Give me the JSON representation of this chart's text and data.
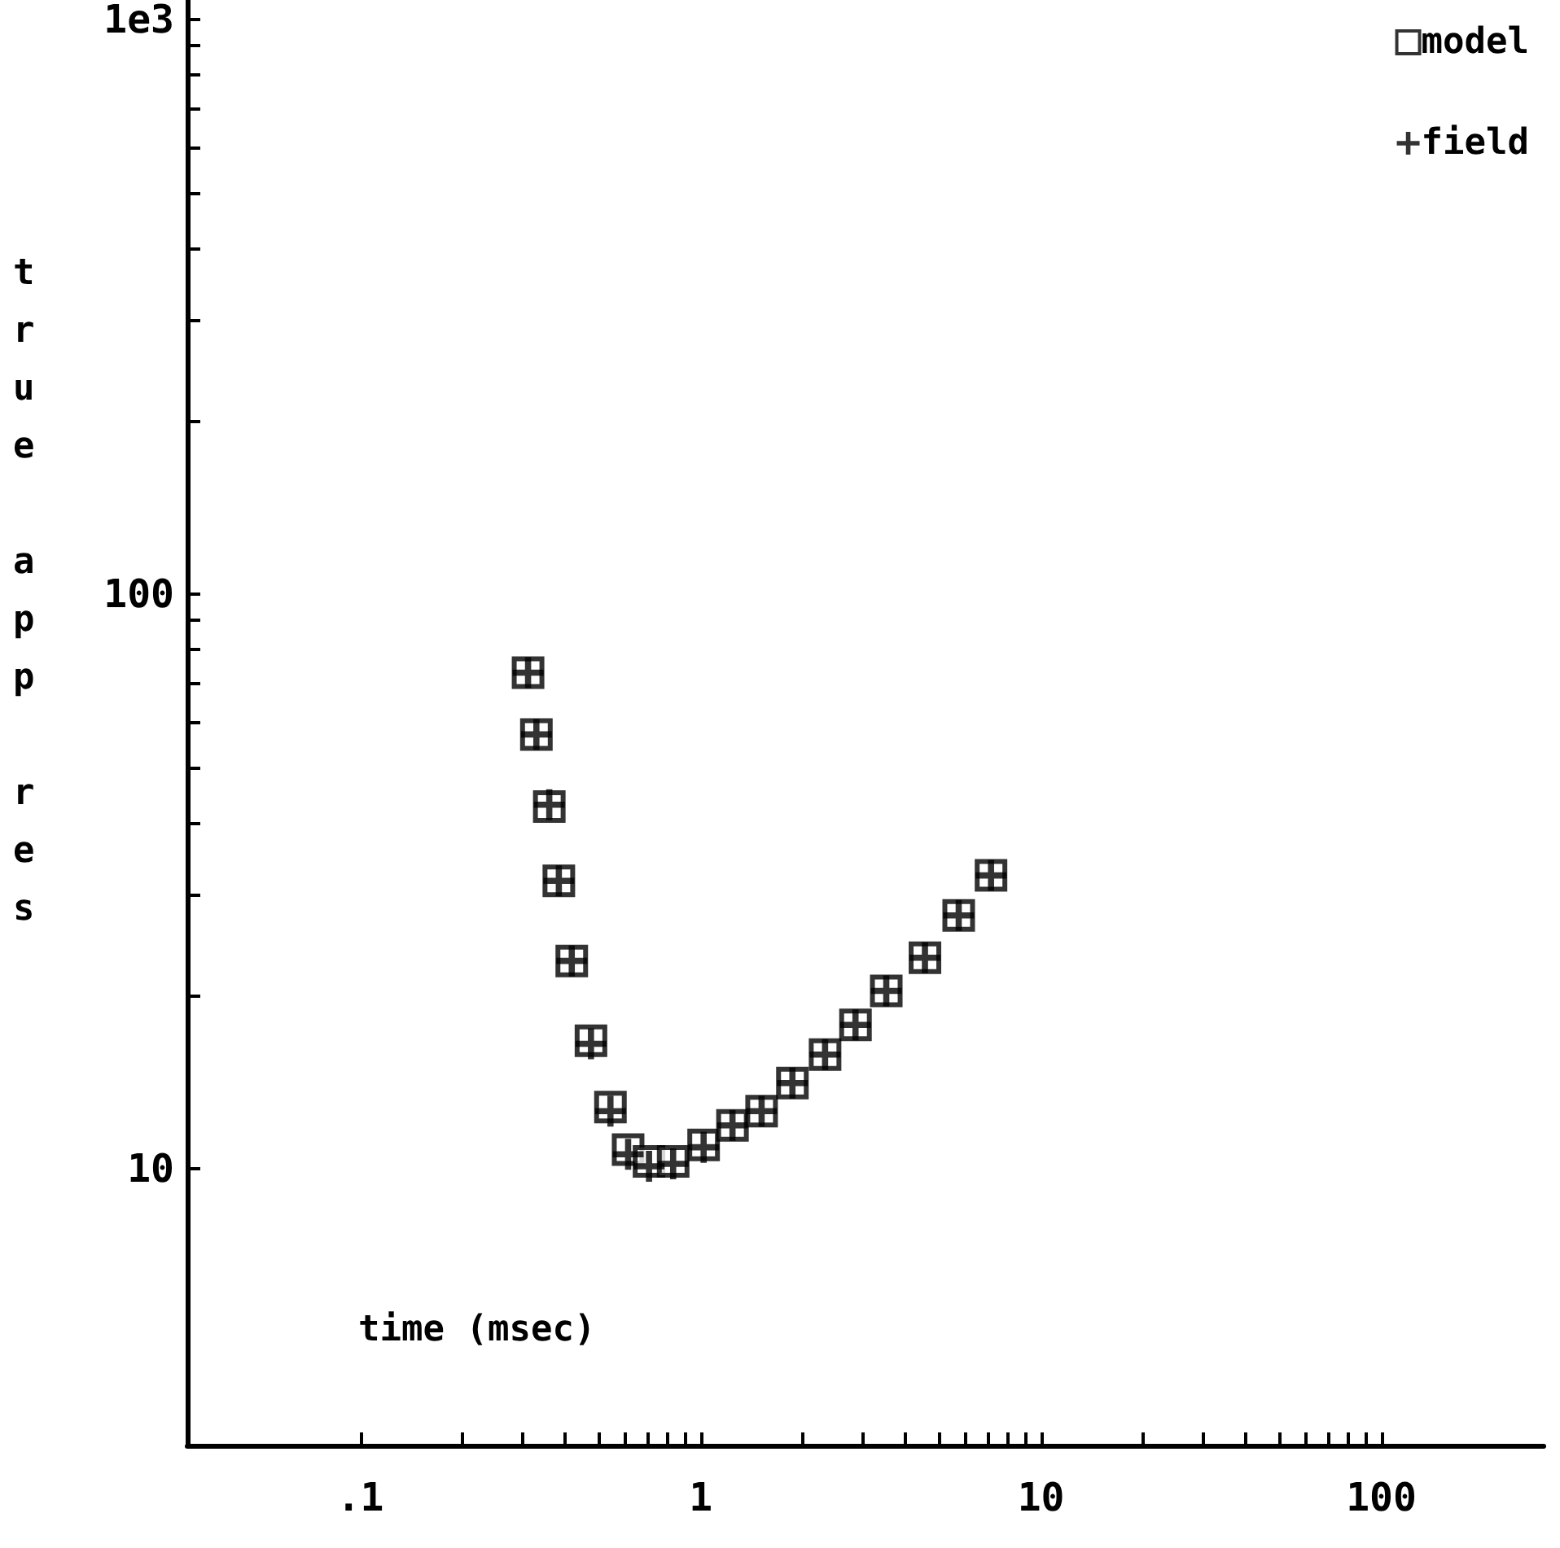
{
  "chart_data": {
    "type": "scatter",
    "xlabel": "time (msec)",
    "ylabel": "true app res",
    "log": "xy",
    "grid": false,
    "legend": "top right",
    "xlim": [
      0.031,
      300
    ],
    "ylim": [
      3.3,
      1080
    ],
    "xticks": [
      {
        "value": 0.1,
        "label": ".1"
      },
      {
        "value": 0.2,
        "label": null
      },
      {
        "value": 0.3,
        "label": null
      },
      {
        "value": 0.4,
        "label": null
      },
      {
        "value": 0.5,
        "label": null
      },
      {
        "value": 0.6,
        "label": null
      },
      {
        "value": 0.7,
        "label": null
      },
      {
        "value": 0.8,
        "label": null
      },
      {
        "value": 0.9,
        "label": null
      },
      1,
      {
        "value": 2,
        "label": null
      },
      {
        "value": 3,
        "label": null
      },
      {
        "value": 4,
        "label": null
      },
      {
        "value": 5,
        "label": null
      },
      {
        "value": 6,
        "label": null
      },
      {
        "value": 7,
        "label": null
      },
      {
        "value": 8,
        "label": null
      },
      {
        "value": 9,
        "label": null
      },
      10,
      {
        "value": 20,
        "label": null
      },
      {
        "value": 30,
        "label": null
      },
      {
        "value": 40,
        "label": null
      },
      {
        "value": 50,
        "label": null
      },
      {
        "value": 60,
        "label": null
      },
      {
        "value": 70,
        "label": null
      },
      {
        "value": 80,
        "label": null
      },
      {
        "value": 90,
        "label": null
      },
      100
    ],
    "yticks": [
      10,
      {
        "value": 20,
        "label": null
      },
      {
        "value": 30,
        "label": null
      },
      {
        "value": 40,
        "label": null
      },
      {
        "value": 50,
        "label": null
      },
      {
        "value": 60,
        "label": null
      },
      {
        "value": 70,
        "label": null
      },
      {
        "value": 80,
        "label": null
      },
      {
        "value": 90,
        "label": null
      },
      100,
      {
        "value": 200,
        "label": null
      },
      {
        "value": 300,
        "label": null
      },
      {
        "value": 400,
        "label": null
      },
      {
        "value": 500,
        "label": null
      },
      {
        "value": 600,
        "label": null
      },
      {
        "value": 700,
        "label": null
      },
      {
        "value": 800,
        "label": null
      },
      {
        "value": 900,
        "label": null
      },
      {
        "value": 1000,
        "label": "1e3"
      }
    ],
    "x": [
      0.311,
      0.329,
      0.359,
      0.383,
      0.418,
      0.476,
      0.543,
      0.612,
      0.705,
      0.83,
      1.02,
      1.24,
      1.51,
      1.86,
      2.32,
      2.85,
      3.51,
      4.56,
      5.73,
      7.13
    ],
    "series": [
      {
        "name": "model",
        "color": "#000000",
        "marker": "square",
        "values": [
          73,
          57,
          42.7,
          31.7,
          23,
          16.7,
          12.8,
          10.8,
          10.3,
          10.3,
          11.0,
          11.9,
          12.6,
          14.1,
          15.8,
          17.8,
          20.4,
          23.3,
          27.6,
          32.4
        ]
      },
      {
        "name": "field",
        "color": "#000000",
        "marker": "cross",
        "values": [
          73,
          57,
          43,
          31.7,
          23,
          16.5,
          12.6,
          10.6,
          10.1,
          10.2,
          10.9,
          11.9,
          12.6,
          14.1,
          15.8,
          17.8,
          20.4,
          23.3,
          27.6,
          32.4
        ]
      }
    ]
  }
}
